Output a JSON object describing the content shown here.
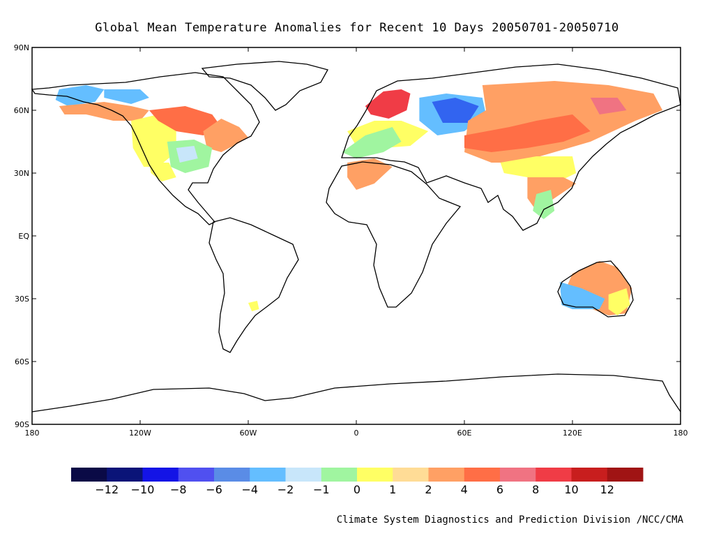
{
  "title": "Global Mean Temperature Anomalies for Recent 10 Days  20050701-20050710",
  "credit": "Climate System Diagnostics and Prediction Division /NCC/CMA",
  "map": {
    "lon_range": [
      -180,
      180
    ],
    "lat_range": [
      -90,
      90
    ],
    "lat_ticks": [
      {
        "value": 90,
        "label": "90N"
      },
      {
        "value": 60,
        "label": "60N"
      },
      {
        "value": 30,
        "label": "30N"
      },
      {
        "value": 0,
        "label": "EQ"
      },
      {
        "value": -30,
        "label": "30S"
      },
      {
        "value": -60,
        "label": "60S"
      },
      {
        "value": -90,
        "label": "90S"
      }
    ],
    "lon_ticks": [
      {
        "value": -180,
        "label": "180"
      },
      {
        "value": -120,
        "label": "120W"
      },
      {
        "value": -60,
        "label": "60W"
      },
      {
        "value": 0,
        "label": "0"
      },
      {
        "value": 60,
        "label": "60E"
      },
      {
        "value": 120,
        "label": "120E"
      },
      {
        "value": 180,
        "label": "180"
      }
    ],
    "anomaly_regions": [
      {
        "name": "alaska-cold",
        "color": "#64BEFF",
        "lonlat": [
          [
            -165,
            70
          ],
          [
            -150,
            72
          ],
          [
            -140,
            70
          ],
          [
            -145,
            64
          ],
          [
            -160,
            62
          ],
          [
            -167,
            65
          ]
        ]
      },
      {
        "name": "nw-canada-cold",
        "color": "#64BEFF",
        "lonlat": [
          [
            -140,
            70
          ],
          [
            -120,
            70
          ],
          [
            -115,
            66
          ],
          [
            -125,
            63
          ],
          [
            -140,
            66
          ]
        ]
      },
      {
        "name": "w-canada-warm",
        "color": "#FFA064",
        "lonlat": [
          [
            -165,
            62
          ],
          [
            -140,
            64
          ],
          [
            -125,
            62
          ],
          [
            -115,
            60
          ],
          [
            -120,
            55
          ],
          [
            -135,
            55
          ],
          [
            -150,
            58
          ],
          [
            -162,
            58
          ]
        ]
      },
      {
        "name": "nw-usa-mild",
        "color": "#FFFF64",
        "lonlat": [
          [
            -125,
            55
          ],
          [
            -110,
            58
          ],
          [
            -100,
            50
          ],
          [
            -100,
            40
          ],
          [
            -110,
            33
          ],
          [
            -118,
            33
          ],
          [
            -124,
            42
          ]
        ]
      },
      {
        "name": "central-canada-hot",
        "color": "#FF6E46",
        "lonlat": [
          [
            -115,
            60
          ],
          [
            -95,
            62
          ],
          [
            -80,
            58
          ],
          [
            -75,
            52
          ],
          [
            -85,
            48
          ],
          [
            -100,
            50
          ],
          [
            -110,
            55
          ]
        ]
      },
      {
        "name": "e-canada-warm",
        "color": "#FFA064",
        "lonlat": [
          [
            -85,
            50
          ],
          [
            -75,
            56
          ],
          [
            -65,
            52
          ],
          [
            -60,
            47
          ],
          [
            -66,
            44
          ],
          [
            -75,
            40
          ],
          [
            -83,
            42
          ]
        ]
      },
      {
        "name": "c-usa-cool",
        "color": "#A0F5A0",
        "lonlat": [
          [
            -105,
            45
          ],
          [
            -90,
            46
          ],
          [
            -80,
            42
          ],
          [
            -82,
            33
          ],
          [
            -95,
            30
          ],
          [
            -103,
            33
          ]
        ]
      },
      {
        "name": "c-usa-cooler",
        "color": "#C8E6FA",
        "lonlat": [
          [
            -100,
            42
          ],
          [
            -90,
            43
          ],
          [
            -88,
            37
          ],
          [
            -98,
            35
          ]
        ]
      },
      {
        "name": "sw-usa-mild",
        "color": "#FFFF64",
        "lonlat": [
          [
            -115,
            35
          ],
          [
            -104,
            35
          ],
          [
            -100,
            28
          ],
          [
            -108,
            26
          ],
          [
            -114,
            30
          ]
        ]
      },
      {
        "name": "argentina-mild",
        "color": "#FFFF64",
        "lonlat": [
          [
            -60,
            -32
          ],
          [
            -55,
            -31
          ],
          [
            -54,
            -35
          ],
          [
            -58,
            -36
          ]
        ]
      },
      {
        "name": "scandinavia-hot",
        "color": "#F03C46",
        "lonlat": [
          [
            5,
            62
          ],
          [
            15,
            69
          ],
          [
            25,
            70
          ],
          [
            30,
            68
          ],
          [
            28,
            60
          ],
          [
            18,
            56
          ],
          [
            8,
            58
          ]
        ]
      },
      {
        "name": "europe-mild",
        "color": "#FFFF64",
        "lonlat": [
          [
            -5,
            50
          ],
          [
            10,
            55
          ],
          [
            25,
            55
          ],
          [
            40,
            50
          ],
          [
            30,
            43
          ],
          [
            15,
            42
          ],
          [
            0,
            43
          ]
        ]
      },
      {
        "name": "europe-cool",
        "color": "#A0F5A0",
        "lonlat": [
          [
            -8,
            40
          ],
          [
            5,
            48
          ],
          [
            20,
            52
          ],
          [
            25,
            45
          ],
          [
            15,
            40
          ],
          [
            0,
            37
          ]
        ]
      },
      {
        "name": "russia-cold",
        "color": "#64BEFF",
        "lonlat": [
          [
            35,
            66
          ],
          [
            50,
            68
          ],
          [
            70,
            66
          ],
          [
            72,
            58
          ],
          [
            60,
            50
          ],
          [
            45,
            48
          ],
          [
            35,
            55
          ]
        ]
      },
      {
        "name": "russia-very-cold",
        "color": "#3264F0",
        "lonlat": [
          [
            42,
            64
          ],
          [
            55,
            66
          ],
          [
            68,
            62
          ],
          [
            62,
            54
          ],
          [
            48,
            54
          ]
        ]
      },
      {
        "name": "siberia-warm",
        "color": "#FFA064",
        "lonlat": [
          [
            70,
            72
          ],
          [
            110,
            74
          ],
          [
            140,
            72
          ],
          [
            165,
            68
          ],
          [
            170,
            60
          ],
          [
            155,
            55
          ],
          [
            130,
            45
          ],
          [
            110,
            40
          ],
          [
            90,
            35
          ],
          [
            75,
            35
          ],
          [
            60,
            40
          ],
          [
            62,
            55
          ],
          [
            72,
            60
          ]
        ]
      },
      {
        "name": "central-asia-hot",
        "color": "#FF6E46",
        "lonlat": [
          [
            60,
            48
          ],
          [
            85,
            52
          ],
          [
            100,
            55
          ],
          [
            120,
            58
          ],
          [
            130,
            50
          ],
          [
            115,
            45
          ],
          [
            95,
            42
          ],
          [
            75,
            40
          ],
          [
            60,
            42
          ]
        ]
      },
      {
        "name": "e-siberia-hot",
        "color": "#F07382",
        "lonlat": [
          [
            130,
            66
          ],
          [
            145,
            66
          ],
          [
            150,
            60
          ],
          [
            135,
            58
          ]
        ]
      },
      {
        "name": "n-africa-warm",
        "color": "#FFA064",
        "lonlat": [
          [
            -5,
            35
          ],
          [
            10,
            37
          ],
          [
            20,
            33
          ],
          [
            10,
            25
          ],
          [
            0,
            22
          ],
          [
            -5,
            28
          ]
        ]
      },
      {
        "name": "china-mild",
        "color": "#FFFF64",
        "lonlat": [
          [
            80,
            35
          ],
          [
            100,
            38
          ],
          [
            120,
            38
          ],
          [
            122,
            30
          ],
          [
            110,
            25
          ],
          [
            95,
            28
          ],
          [
            82,
            30
          ]
        ]
      },
      {
        "name": "se-asia-warm",
        "color": "#FFA064",
        "lonlat": [
          [
            95,
            28
          ],
          [
            115,
            28
          ],
          [
            122,
            25
          ],
          [
            110,
            18
          ],
          [
            100,
            12
          ],
          [
            95,
            18
          ]
        ]
      },
      {
        "name": "indochina-cool",
        "color": "#A0F5A0",
        "lonlat": [
          [
            100,
            20
          ],
          [
            108,
            22
          ],
          [
            110,
            12
          ],
          [
            104,
            8
          ],
          [
            98,
            12
          ]
        ]
      },
      {
        "name": "australia-warm",
        "color": "#FFA064",
        "lonlat": [
          [
            120,
            -18
          ],
          [
            135,
            -12
          ],
          [
            145,
            -15
          ],
          [
            153,
            -25
          ],
          [
            150,
            -37
          ],
          [
            140,
            -38
          ],
          [
            125,
            -33
          ],
          [
            115,
            -28
          ]
        ]
      },
      {
        "name": "australia-cold",
        "color": "#64BEFF",
        "lonlat": [
          [
            113,
            -22
          ],
          [
            125,
            -25
          ],
          [
            138,
            -30
          ],
          [
            135,
            -35
          ],
          [
            120,
            -35
          ],
          [
            114,
            -33
          ]
        ]
      },
      {
        "name": "australia-mild",
        "color": "#FFFF64",
        "lonlat": [
          [
            140,
            -28
          ],
          [
            150,
            -25
          ],
          [
            152,
            -33
          ],
          [
            145,
            -38
          ],
          [
            140,
            -35
          ]
        ]
      }
    ]
  },
  "colorbar": {
    "colors": [
      "#0A0A46",
      "#0A1478",
      "#1414E6",
      "#5050F0",
      "#5A8CE6",
      "#64BEFF",
      "#C8E6FA",
      "#A0F5A0",
      "#FFFF64",
      "#FFDC96",
      "#FFA064",
      "#FF6E46",
      "#F07382",
      "#F03C46",
      "#C81E1E",
      "#A01414"
    ],
    "labels": [
      "-12",
      "-10",
      "-8",
      "-6",
      "-4",
      "-2",
      "-1",
      "0",
      "1",
      "2",
      "4",
      "6",
      "8",
      "10",
      "12"
    ]
  }
}
